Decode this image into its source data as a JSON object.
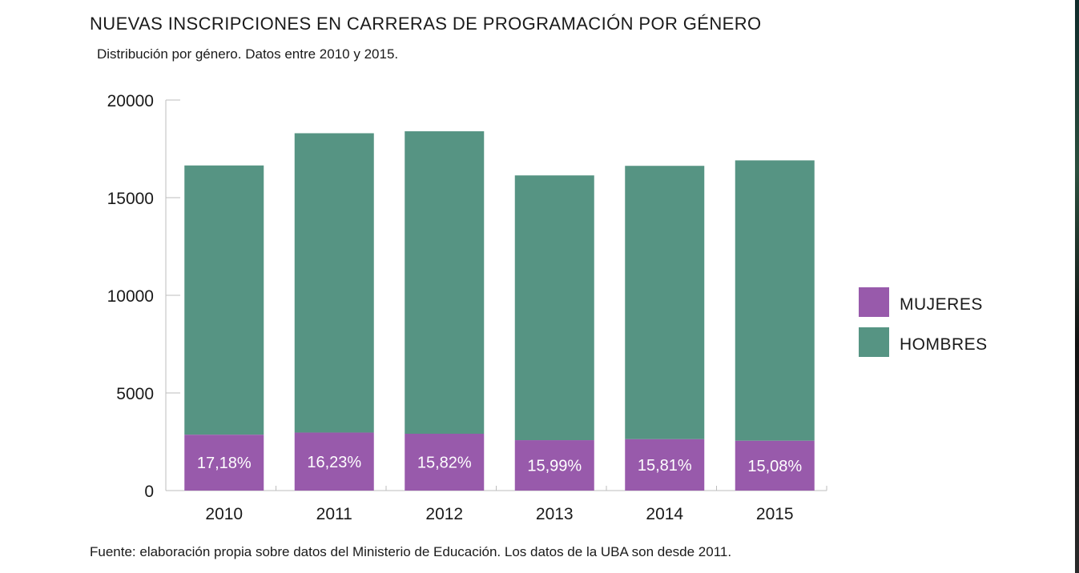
{
  "chart_data": {
    "type": "bar",
    "stacked": true,
    "title": "NUEVAS INSCRIPCIONES EN CARRERAS DE PROGRAMACIÓN POR GÉNERO",
    "subtitle": "Distribución por género. Datos entre 2010 y 2015.",
    "footnote": "Fuente: elaboración propia sobre datos del Ministerio de Educación. Los datos de la UBA son desde 2011.",
    "categories": [
      "2010",
      "2011",
      "2012",
      "2013",
      "2014",
      "2015"
    ],
    "ylim": [
      0,
      20000
    ],
    "yticks": [
      "20000",
      "15000",
      "10000",
      "5000",
      "0"
    ],
    "series": [
      {
        "name": "MUJERES",
        "color": "#985aab",
        "values": [
          2860,
          2970,
          2910,
          2580,
          2630,
          2550
        ],
        "labels": [
          "17,18%",
          "16,23%",
          "15,82%",
          "15,99%",
          "15,81%",
          "15,08%"
        ]
      },
      {
        "name": "HOMBRES",
        "color": "#569483",
        "values": [
          13790,
          15330,
          15490,
          13560,
          14000,
          14360
        ]
      }
    ],
    "legend_position": "right"
  }
}
